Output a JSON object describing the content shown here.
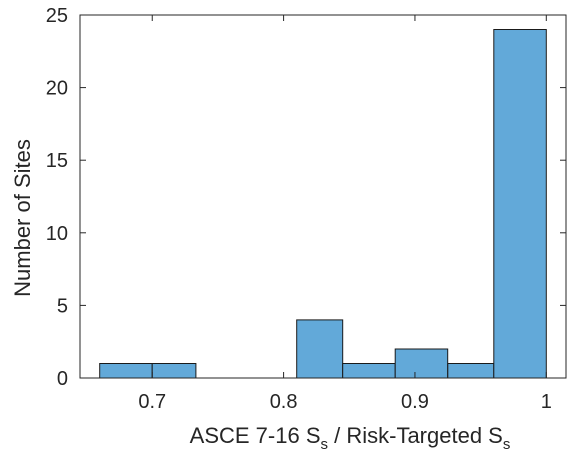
{
  "chart_data": {
    "type": "bar",
    "subtype": "histogram",
    "bins": [
      {
        "start": 0.66,
        "end": 0.7,
        "count": 1
      },
      {
        "start": 0.7,
        "end": 0.7333,
        "count": 1
      },
      {
        "start": 0.7333,
        "end": 0.77,
        "count": 0
      },
      {
        "start": 0.77,
        "end": 0.81,
        "count": 0
      },
      {
        "start": 0.81,
        "end": 0.845,
        "count": 4
      },
      {
        "start": 0.845,
        "end": 0.885,
        "count": 1
      },
      {
        "start": 0.885,
        "end": 0.925,
        "count": 2
      },
      {
        "start": 0.925,
        "end": 0.96,
        "count": 1
      },
      {
        "start": 0.96,
        "end": 1.0,
        "count": 24
      }
    ],
    "xlabel": {
      "part1": "ASCE 7-16 S",
      "sub1": "s",
      "part2": " / Risk-Targeted S",
      "sub2": "s"
    },
    "ylabel": "Number of Sites",
    "xlim": [
      0.645,
      1.015
    ],
    "ylim": [
      0,
      25
    ],
    "xticks": [
      0.7,
      0.8,
      0.9,
      1.0
    ],
    "xtick_labels": [
      "0.7",
      "0.8",
      "0.9",
      "1"
    ],
    "yticks": [
      0,
      5,
      10,
      15,
      20,
      25
    ],
    "ytick_labels": [
      "0",
      "5",
      "10",
      "15",
      "20",
      "25"
    ],
    "grid": false,
    "colors": {
      "bar_fill": "#62a9d9",
      "bar_edge": "#1a1a1a",
      "axis": "#262626"
    }
  }
}
